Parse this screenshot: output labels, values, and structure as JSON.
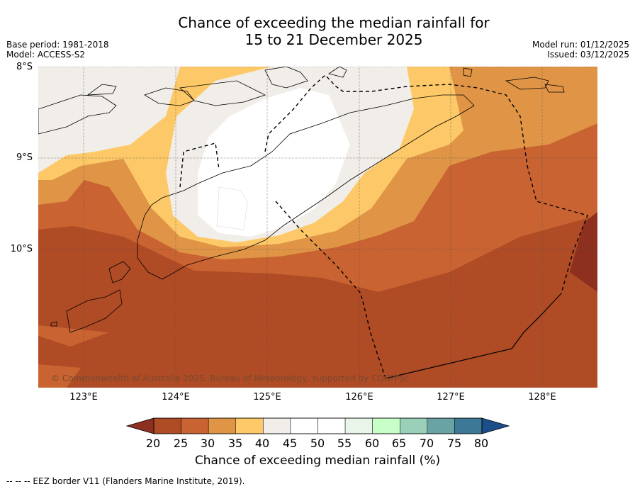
{
  "title_line1": "Chance of exceeding the median rainfall for",
  "title_line2": "15 to 21 December 2025",
  "meta_left": {
    "base_period": "Base period: 1981-2018",
    "model": "Model: ACCESS-S2"
  },
  "meta_right": {
    "model_run": "Model run: 01/12/2025",
    "issued": "Issued: 03/12/2025"
  },
  "lat_labels": [
    "8°S",
    "9°S",
    "10°S"
  ],
  "lon_labels": [
    "123°E",
    "124°E",
    "125°E",
    "126°E",
    "127°E",
    "128°E"
  ],
  "copyright": "© Commonwealth of Australia 2025, Bureau of Meteorology, supported by COSPPac",
  "colorbar": {
    "ticks": [
      "20",
      "25",
      "30",
      "35",
      "40",
      "45",
      "50",
      "55",
      "60",
      "65",
      "70",
      "75",
      "80"
    ],
    "colors": [
      "#8e3020",
      "#af4b25",
      "#c96331",
      "#e09546",
      "#fdc968",
      "#f1ede8",
      "#ffffff",
      "#ffffff",
      "#e8f5e8",
      "#c8ffc8",
      "#9acfb8",
      "#6aa3a3",
      "#3d7896",
      "#1b4f8a"
    ],
    "label": "Chance of exceeding median rainfall (%)"
  },
  "legend_note": "--  --  -- EEZ border V11 (Flanders Marine Institute, 2019)."
}
